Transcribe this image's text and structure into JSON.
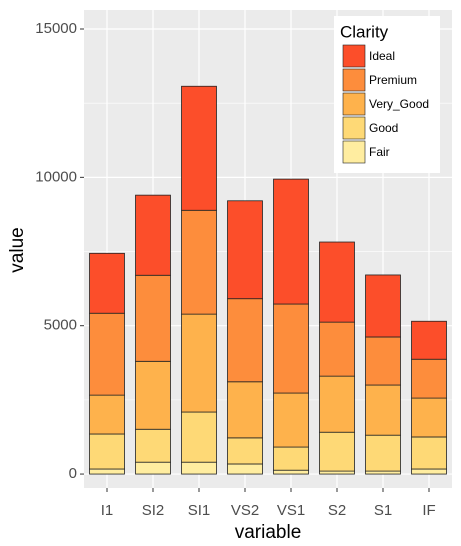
{
  "chart_data": {
    "type": "stacked_bar",
    "x_label": "variable",
    "y_label": "value",
    "legend_title": "Clarity",
    "categories": [
      "I1",
      "SI2",
      "SI1",
      "VS2",
      "VS1",
      "S2",
      "S1",
      "IF"
    ],
    "series": [
      {
        "name": "Fair",
        "color": "#ffeda0",
        "values": [
          170,
          400,
          400,
          340,
          130,
          100,
          100,
          170
        ]
      },
      {
        "name": "Good",
        "color": "#fed976",
        "values": [
          1180,
          1110,
          1690,
          880,
          780,
          1310,
          1210,
          1080
        ]
      },
      {
        "name": "Very_Good",
        "color": "#feb24c",
        "values": [
          1310,
          2290,
          3300,
          1890,
          1820,
          1890,
          1690,
          1310
        ]
      },
      {
        "name": "Premium",
        "color": "#fd8d3c",
        "values": [
          2760,
          2900,
          3500,
          2800,
          3000,
          1820,
          1620,
          1310
        ]
      },
      {
        "name": "Ideal",
        "color": "#fc4e2a",
        "values": [
          2020,
          2700,
          4180,
          3300,
          4210,
          2700,
          2090,
          1280
        ]
      }
    ],
    "ylim": [
      -470,
      15640
    ],
    "yticks": [
      0,
      5000,
      10000,
      15000
    ],
    "grid": true,
    "legend_position": "top-right"
  }
}
